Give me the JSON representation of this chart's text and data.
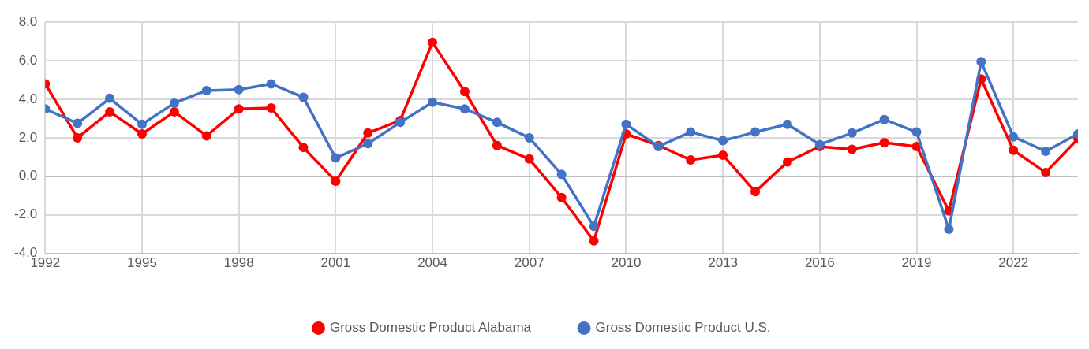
{
  "chart_data": {
    "type": "line",
    "x": [
      1992,
      1993,
      1994,
      1995,
      1996,
      1997,
      1998,
      1999,
      2000,
      2001,
      2002,
      2003,
      2004,
      2005,
      2006,
      2007,
      2008,
      2009,
      2010,
      2011,
      2012,
      2013,
      2014,
      2015,
      2016,
      2017,
      2018,
      2019,
      2020,
      2021,
      2022,
      2023,
      2024
    ],
    "series": [
      {
        "name": "Gross Domestic Product Alabama",
        "color": "#ff0000",
        "values": [
          4.8,
          2.0,
          3.35,
          2.2,
          3.35,
          2.1,
          3.5,
          3.55,
          1.5,
          -0.25,
          2.25,
          2.9,
          6.95,
          4.4,
          1.6,
          0.9,
          -1.1,
          -3.35,
          2.2,
          1.6,
          0.85,
          1.1,
          -0.8,
          0.75,
          1.55,
          1.4,
          1.75,
          1.55,
          -1.8,
          5.05,
          1.35,
          0.2,
          1.95
        ]
      },
      {
        "name": "Gross Domestic Product U.S.",
        "color": "#4472c4",
        "values": [
          3.5,
          2.75,
          4.05,
          2.7,
          3.8,
          4.45,
          4.5,
          4.8,
          4.1,
          0.95,
          1.7,
          2.8,
          3.85,
          3.5,
          2.8,
          2.0,
          0.1,
          -2.6,
          2.7,
          1.55,
          2.3,
          1.85,
          2.3,
          2.7,
          1.65,
          2.25,
          2.95,
          2.3,
          -2.75,
          5.95,
          2.05,
          1.3,
          2.2
        ]
      }
    ],
    "xlim": [
      1992,
      2024
    ],
    "xticks": [
      1992,
      1995,
      1998,
      2001,
      2004,
      2007,
      2010,
      2013,
      2016,
      2019,
      2022
    ],
    "ylim": [
      -4,
      8
    ],
    "yticks": [
      {
        "value": -4,
        "label": "-4.0"
      },
      {
        "value": -2,
        "label": "-2.0"
      },
      {
        "value": 0,
        "label": "0.0"
      },
      {
        "value": 2,
        "label": "2.0"
      },
      {
        "value": 4,
        "label": "4.0"
      },
      {
        "value": 6,
        "label": "6.0"
      },
      {
        "value": 8,
        "label": "8.0"
      }
    ],
    "grid": true,
    "legend": "bottom",
    "marker": "circle",
    "line_style": "solid"
  }
}
